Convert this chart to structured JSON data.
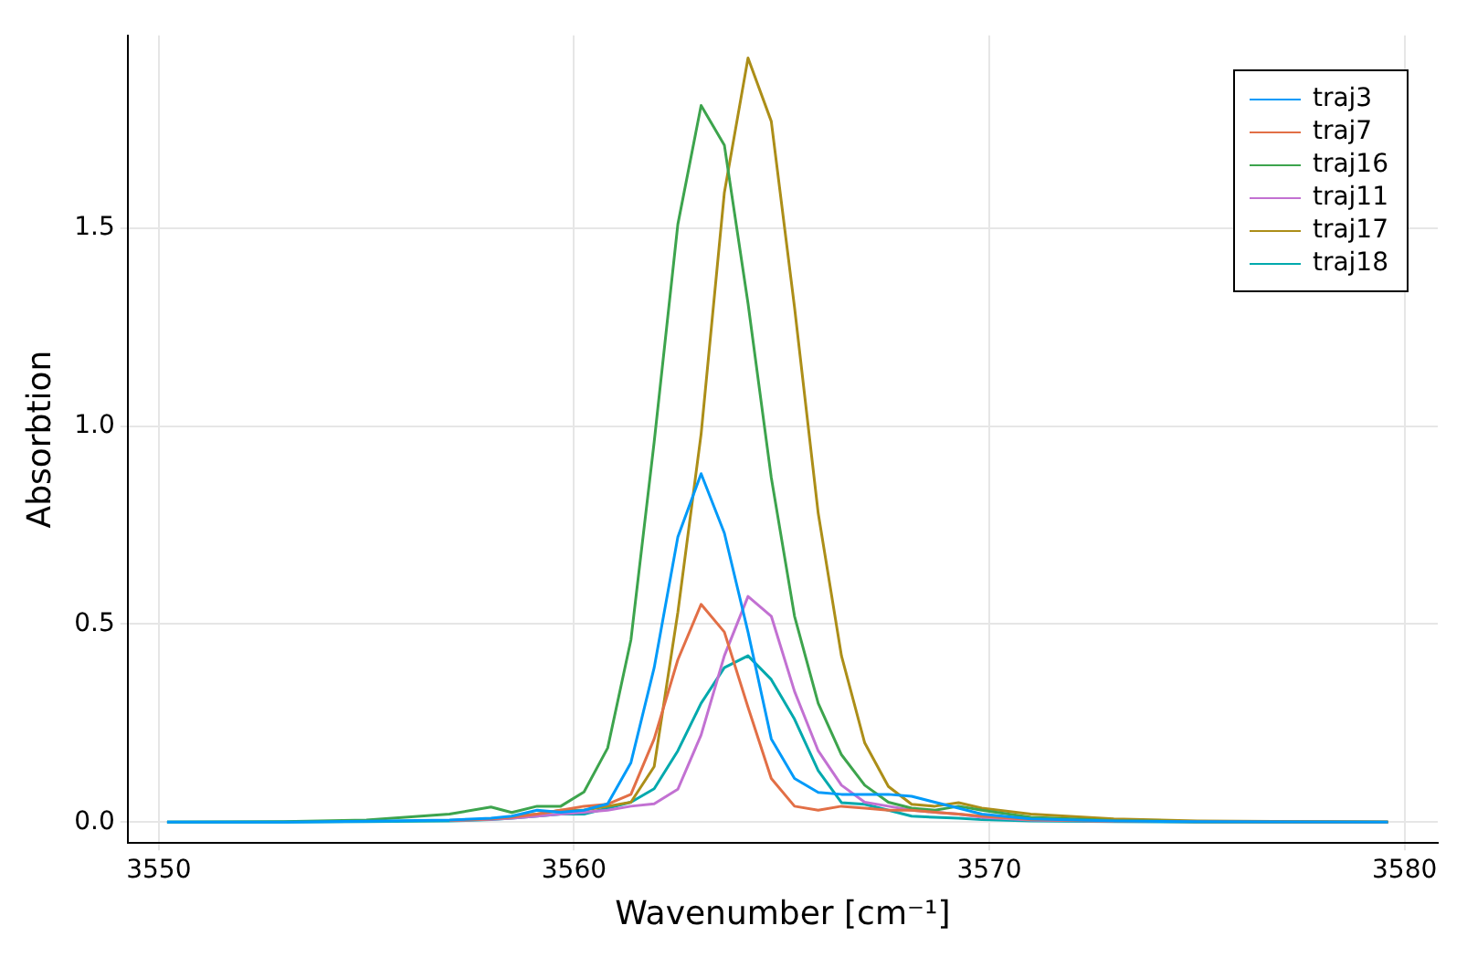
{
  "chart_data": {
    "type": "line",
    "xlabel": "Wavenumber [cm⁻¹]",
    "ylabel": "Absorbtion",
    "x": [
      3550.2,
      3553,
      3555,
      3557,
      3558,
      3558.5,
      3559.11,
      3559.68,
      3560.24,
      3560.81,
      3561.37,
      3561.93,
      3562.5,
      3563.06,
      3563.62,
      3564.19,
      3564.75,
      3565.31,
      3565.88,
      3566.44,
      3567,
      3567.57,
      3568.13,
      3568.69,
      3569.26,
      3569.82,
      3571,
      3573,
      3575,
      3579.6
    ],
    "series": [
      {
        "name": "traj3",
        "color": "#009af9",
        "values": [
          0,
          0,
          0.002,
          0.005,
          0.01,
          0.015,
          0.03,
          0.025,
          0.03,
          0.046,
          0.15,
          0.39,
          0.72,
          0.88,
          0.73,
          0.48,
          0.21,
          0.11,
          0.075,
          0.07,
          0.07,
          0.07,
          0.065,
          0.05,
          0.035,
          0.02,
          0.008,
          0.003,
          0.001,
          0
        ]
      },
      {
        "name": "traj7",
        "color": "#e26f46",
        "values": [
          null,
          null,
          null,
          0.004,
          0.008,
          0.012,
          0.02,
          0.03,
          0.04,
          0.045,
          0.07,
          0.21,
          0.41,
          0.55,
          0.48,
          0.29,
          0.11,
          0.04,
          0.03,
          0.04,
          0.035,
          0.03,
          0.03,
          0.025,
          0.02,
          0.015,
          0.006,
          0.002,
          0.001,
          0
        ]
      },
      {
        "name": "traj16",
        "color": "#3da44d",
        "values": [
          0,
          0.001,
          0.005,
          0.02,
          0.038,
          0.024,
          0.04,
          0.04,
          0.076,
          0.187,
          0.46,
          0.96,
          1.51,
          1.81,
          1.71,
          1.31,
          0.87,
          0.52,
          0.3,
          0.17,
          0.093,
          0.05,
          0.035,
          0.03,
          0.04,
          0.03,
          0.012,
          0.004,
          0.001,
          0
        ]
      },
      {
        "name": "traj11",
        "color": "#c271d2",
        "values": [
          null,
          null,
          null,
          0.004,
          0.007,
          0.01,
          0.015,
          0.02,
          0.025,
          0.03,
          0.04,
          0.046,
          0.083,
          0.22,
          0.42,
          0.57,
          0.52,
          0.33,
          0.18,
          0.093,
          0.05,
          0.04,
          0.03,
          0.025,
          0.02,
          0.012,
          0.005,
          0.002,
          null,
          null
        ]
      },
      {
        "name": "traj17",
        "color": "#ac8e18",
        "values": [
          null,
          null,
          null,
          null,
          null,
          0.015,
          0.02,
          0.03,
          0.03,
          0.04,
          0.05,
          0.14,
          0.53,
          0.98,
          1.59,
          1.93,
          1.77,
          1.3,
          0.78,
          0.42,
          0.2,
          0.09,
          0.045,
          0.04,
          0.049,
          0.035,
          0.02,
          0.008,
          0.003,
          0
        ]
      },
      {
        "name": "traj18",
        "color": "#00a9ad",
        "values": [
          0,
          0,
          0.001,
          0.003,
          0.006,
          0.01,
          0.015,
          0.02,
          0.02,
          0.035,
          0.05,
          0.084,
          0.18,
          0.3,
          0.39,
          0.42,
          0.36,
          0.26,
          0.13,
          0.049,
          0.045,
          0.03,
          0.015,
          0.012,
          0.01,
          0.006,
          0.003,
          0.001,
          0,
          0
        ]
      }
    ],
    "xlim": [
      3549.25,
      3580.8
    ],
    "xticks": [
      3550,
      3560,
      3570,
      3580
    ],
    "ylim": [
      -0.053,
      1.987
    ],
    "yticks": [
      {
        "value": 0,
        "label": "0.0"
      },
      {
        "value": 0.5,
        "label": "0.5"
      },
      {
        "value": 1,
        "label": "1.0"
      },
      {
        "value": 1.5,
        "label": "1.5"
      }
    ],
    "grid": true,
    "legend": "top right",
    "marker": "none",
    "line_style": "solid"
  }
}
